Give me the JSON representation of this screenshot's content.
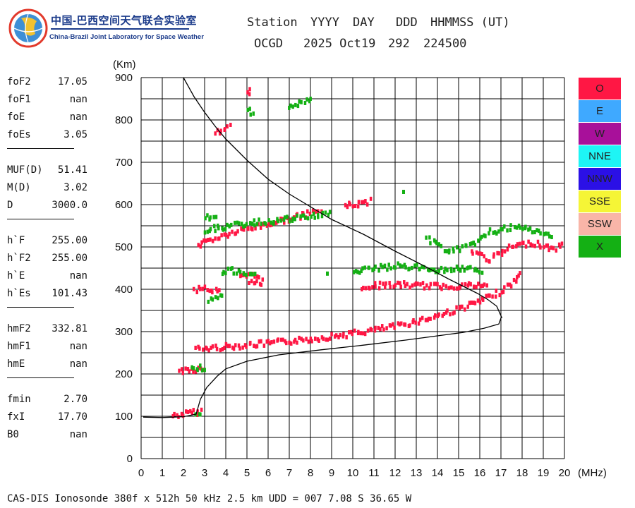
{
  "logo": {
    "cn_title": "中国-巴西空间天气联合实验室",
    "en_title": "China-Brazil Joint Laboratory for Space Weather"
  },
  "header": {
    "labels": [
      "Station",
      "YYYY",
      "DAY",
      "DDD",
      "HHMMSS (UT)"
    ],
    "values": [
      "OCGD",
      "2025 Oct19",
      "292",
      "224500"
    ]
  },
  "params": {
    "groups": [
      [
        {
          "key": "foF2",
          "value": "17.05"
        },
        {
          "key": "foF1",
          "value": "nan"
        },
        {
          "key": "foE",
          "value": "nan"
        },
        {
          "key": "foEs",
          "value": "3.05"
        }
      ],
      [
        {
          "key": "MUF(D)",
          "value": "51.41"
        },
        {
          "key": "M(D)",
          "value": "3.02"
        },
        {
          "key": "D",
          "value": "3000.0"
        }
      ],
      [
        {
          "key": "h`F",
          "value": "255.00"
        },
        {
          "key": "h`F2",
          "value": "255.00"
        },
        {
          "key": "h`E",
          "value": "nan"
        },
        {
          "key": "h`Es",
          "value": "101.43"
        }
      ],
      [
        {
          "key": "hmF2",
          "value": "332.81"
        },
        {
          "key": "hmF1",
          "value": "nan"
        },
        {
          "key": "hmE",
          "value": "nan"
        }
      ],
      [
        {
          "key": "fmin",
          "value": "2.70"
        },
        {
          "key": "fxI",
          "value": "17.70"
        },
        {
          "key": "B0",
          "value": "nan"
        }
      ]
    ]
  },
  "legend": [
    {
      "label": "O",
      "color": "#ff1744"
    },
    {
      "label": "E",
      "color": "#3fa9ff"
    },
    {
      "label": "W",
      "color": "#a8109a"
    },
    {
      "label": "NNE",
      "color": "#1ef5f5"
    },
    {
      "label": "NNW",
      "color": "#2b10e6"
    },
    {
      "label": "SSE",
      "color": "#f5f536"
    },
    {
      "label": "SSW",
      "color": "#f9b5a8"
    },
    {
      "label": "X",
      "color": "#14b014"
    }
  ],
  "footer": "CAS-DIS Ionosonde 380f x 512h 50 kHz 2.5 km UDD = 007 7.08 S 36.65 W",
  "chart_data": {
    "type": "scatter",
    "ylabel": "(Km)",
    "xlabel": "(MHz)",
    "xlim": [
      0,
      20
    ],
    "ylim": [
      0,
      900
    ],
    "xticks": [
      0,
      1,
      2,
      3,
      4,
      5,
      6,
      7,
      8,
      9,
      10,
      11,
      12,
      13,
      14,
      15,
      16,
      17,
      18,
      19,
      20
    ],
    "yticks": [
      0,
      100,
      200,
      300,
      400,
      500,
      600,
      700,
      800,
      900
    ],
    "grid": true,
    "series": [
      {
        "name": "O",
        "segments": [
          {
            "x": [
              1.5,
              2.9
            ],
            "y": [
              101,
              112
            ]
          },
          {
            "x": [
              1.8,
              3.0
            ],
            "y": [
              208,
              212
            ]
          },
          {
            "x": [
              2.6,
              4.0,
              6.0,
              8.0,
              10.0,
              12.0,
              13.5,
              14.5,
              15.5,
              16.2,
              16.8,
              17.3,
              17.8,
              18.0
            ],
            "y": [
              258,
              264,
              272,
              282,
              295,
              312,
              330,
              345,
              362,
              375,
              390,
              405,
              425,
              440
            ]
          },
          {
            "x": [
              2.7,
              3.5,
              4.5,
              5.5,
              6.5,
              7.5,
              8.2,
              8.6
            ],
            "y": [
              505,
              520,
              535,
              548,
              560,
              572,
              582,
              588
            ]
          },
          {
            "x": [
              9.6,
              10.3,
              10.9
            ],
            "y": [
              596,
              602,
              608
            ]
          },
          {
            "x": [
              2.5,
              2.9,
              3.3,
              3.8
            ],
            "y": [
              398,
              405,
              398,
              392
            ]
          },
          {
            "x": [
              4.7,
              5.3,
              5.8
            ],
            "y": [
              428,
              432,
              428
            ]
          },
          {
            "x": [
              5.1,
              5.8
            ],
            "y": [
              415,
              414
            ]
          },
          {
            "x": [
              10.4,
              11.4,
              12.4,
              13.4,
              14.4,
              15.4,
              16.4
            ],
            "y": [
              405,
              410,
              410,
              408,
              406,
              410,
              406
            ]
          },
          {
            "x": [
              15.6,
              16.5,
              17.5,
              18.5,
              19.5,
              20.0
            ],
            "y": [
              490,
              470,
              500,
              510,
              495,
              505
            ]
          },
          {
            "x": [
              3.5,
              3.9,
              4.3
            ],
            "y": [
              770,
              778,
              785
            ]
          },
          {
            "x": [
              5.0,
              5.2
            ],
            "y": [
              865,
              868
            ]
          }
        ]
      },
      {
        "name": "X",
        "segments": [
          {
            "x": [
              2.6,
              2.9
            ],
            "y": [
              110,
              107
            ]
          },
          {
            "x": [
              2.4,
              3.1
            ],
            "y": [
              212,
              214
            ]
          },
          {
            "x": [
              3.0,
              5.0,
              7.0,
              9.0
            ],
            "y": [
              540,
              555,
              565,
              580
            ]
          },
          {
            "x": [
              3.0,
              3.6
            ],
            "y": [
              570,
              566
            ]
          },
          {
            "x": [
              3.8,
              4.2,
              4.8,
              5.5
            ],
            "y": [
              440,
              445,
              435,
              430
            ]
          },
          {
            "x": [
              3.2,
              3.5,
              3.9
            ],
            "y": [
              375,
              385,
              380
            ]
          },
          {
            "x": [
              10.0,
              11.2,
              12.2,
              13.2,
              14.2,
              15.2,
              16.2
            ],
            "y": [
              440,
              450,
              455,
              450,
              445,
              450,
              440
            ]
          },
          {
            "x": [
              13.5,
              14.5,
              15.5,
              16.5,
              17.5,
              18.5,
              19.5
            ],
            "y": [
              520,
              490,
              500,
              535,
              545,
              540,
              520
            ]
          },
          {
            "x": [
              5.0,
              5.4
            ],
            "y": [
              830,
              808
            ]
          },
          {
            "x": [
              7.0,
              8.1
            ],
            "y": [
              830,
              850
            ]
          },
          {
            "x": [
              12.4
            ],
            "y": [
              630
            ]
          },
          {
            "x": [
              8.8
            ],
            "y": [
              437
            ]
          }
        ]
      }
    ],
    "profiles": [
      {
        "x": [
          0.1,
          1.0,
          2.0,
          2.6,
          2.8,
          3.1,
          3.6,
          4.0,
          5.0,
          6.5,
          8.5,
          10.5,
          12.5,
          14.0,
          15.2,
          16.2,
          16.9,
          17.0
        ],
        "y": [
          98,
          97,
          99,
          105,
          140,
          168,
          195,
          212,
          230,
          245,
          257,
          268,
          280,
          290,
          298,
          308,
          318,
          332
        ]
      },
      {
        "x": [
          2.0,
          2.5,
          3.0,
          3.5,
          4.0,
          5.0,
          6.0,
          7.0,
          8.0,
          9.0,
          10.5,
          12.0,
          13.5,
          14.5,
          15.3,
          15.9,
          16.4,
          16.8,
          17.05
        ],
        "y": [
          900,
          855,
          818,
          785,
          755,
          705,
          660,
          625,
          595,
          565,
          530,
          490,
          452,
          425,
          405,
          390,
          375,
          360,
          332
        ]
      }
    ]
  }
}
